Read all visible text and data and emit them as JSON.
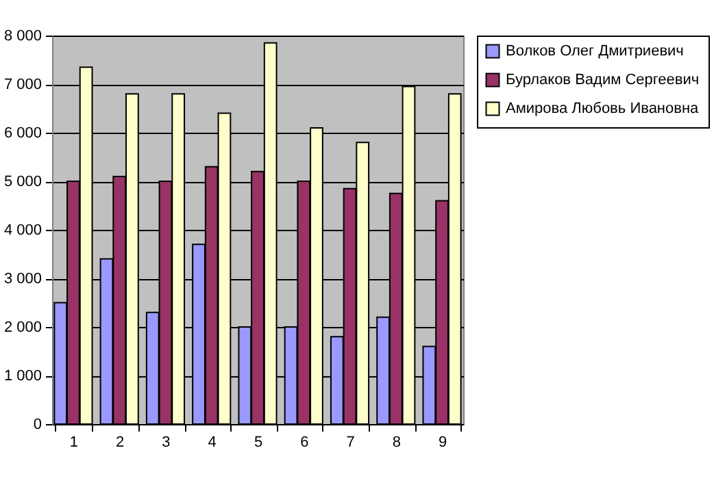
{
  "chart_data": {
    "type": "bar",
    "categories": [
      "1",
      "2",
      "3",
      "4",
      "5",
      "6",
      "7",
      "8",
      "9"
    ],
    "series": [
      {
        "name": "Волков Олег Дмитриевич",
        "color": "#9999ff",
        "values": [
          2500,
          3400,
          2300,
          3700,
          2000,
          2000,
          1800,
          2200,
          1600
        ]
      },
      {
        "name": "Бурлаков Вадим Сергеевич",
        "color": "#993366",
        "values": [
          5000,
          5100,
          5000,
          5300,
          5200,
          5000,
          4850,
          4750,
          4600
        ]
      },
      {
        "name": "Амирова Любовь Ивановна",
        "color": "#ffffcc",
        "values": [
          7350,
          6800,
          6800,
          6400,
          7850,
          6100,
          5800,
          6950,
          6800
        ]
      }
    ],
    "ylim": [
      0,
      8000
    ],
    "yticks": [
      {
        "value": 0,
        "label": "0"
      },
      {
        "value": 1000,
        "label": "1 000"
      },
      {
        "value": 2000,
        "label": "2 000"
      },
      {
        "value": 3000,
        "label": "3 000"
      },
      {
        "value": 4000,
        "label": "4 000"
      },
      {
        "value": 5000,
        "label": "5 000"
      },
      {
        "value": 6000,
        "label": "6 000"
      },
      {
        "value": 7000,
        "label": "7 000"
      },
      {
        "value": 8000,
        "label": "8 000"
      }
    ],
    "grid": "y",
    "legend": "right"
  }
}
